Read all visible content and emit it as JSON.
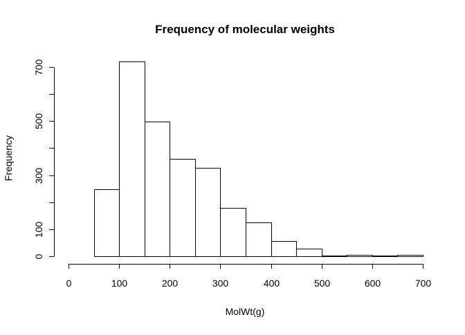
{
  "chart_data": {
    "type": "bar",
    "subtype": "histogram",
    "title": "Frequency of molecular weights",
    "xlabel": "MolWt(g)",
    "ylabel": "Frequency",
    "bin_edges": [
      0,
      50,
      100,
      150,
      200,
      250,
      300,
      350,
      400,
      450,
      500,
      550,
      600,
      650,
      700
    ],
    "values": [
      0,
      247,
      721,
      499,
      360,
      327,
      178,
      124,
      55,
      28,
      2,
      4,
      2,
      6
    ],
    "xlim": [
      0,
      700
    ],
    "ylim": [
      0,
      700
    ],
    "x_ticks": [
      0,
      100,
      200,
      300,
      400,
      500,
      600,
      700
    ],
    "y_ticks": [
      0,
      100,
      200,
      300,
      400,
      500,
      600,
      700
    ],
    "y_tick_labels": [
      "0",
      "100",
      "",
      "300",
      "",
      "500",
      "",
      "700"
    ],
    "grid": false,
    "legend": "none",
    "colors": {
      "bar_fill": "#ffffff",
      "bar_stroke": "#000000"
    }
  }
}
